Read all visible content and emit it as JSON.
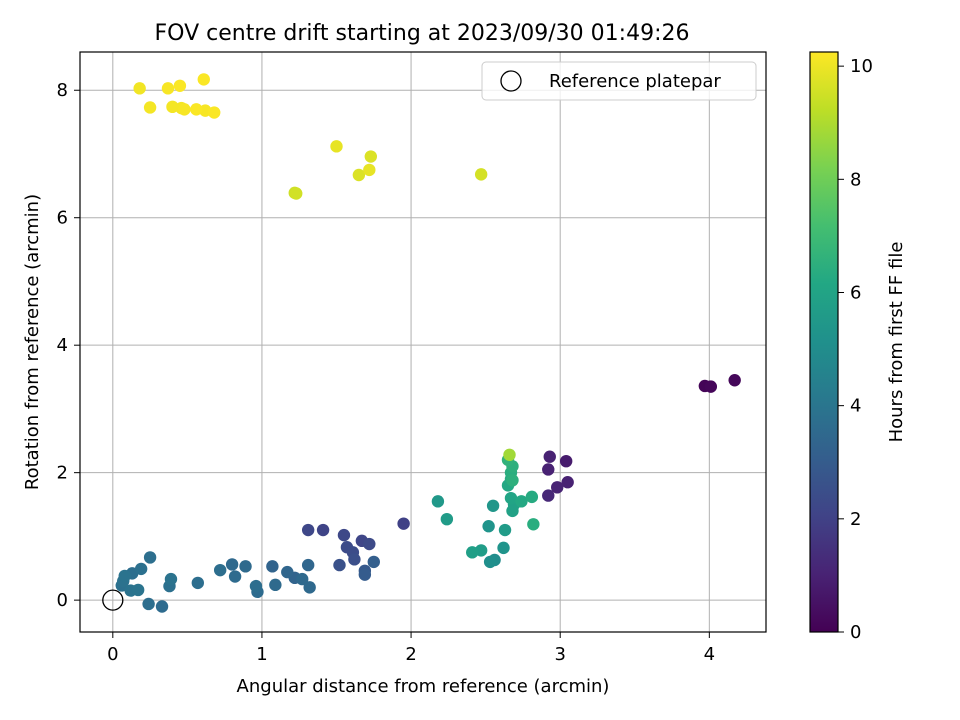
{
  "chart_data": {
    "type": "scatter",
    "title": "FOV centre drift starting at 2023/09/30 01:49:26",
    "xlabel": "Angular distance from reference (arcmin)",
    "ylabel": "Rotation from reference (arcmin)",
    "xlim": [
      -0.22,
      4.38
    ],
    "ylim": [
      -0.5,
      8.6
    ],
    "xticks": [
      0,
      1,
      2,
      3,
      4
    ],
    "yticks": [
      0,
      2,
      4,
      6,
      8
    ],
    "grid": true,
    "legend": {
      "position": "top-right",
      "entries": [
        "Reference platepar"
      ]
    },
    "reference_point": {
      "label": "Reference platepar",
      "x": 0,
      "y": 0
    },
    "colorbar": {
      "label": "Hours from first FF file",
      "colormap": "viridis",
      "range": [
        0,
        10.25
      ],
      "ticks": [
        0,
        2,
        4,
        6,
        8,
        10
      ]
    },
    "series": [
      {
        "x": [
          3.97,
          4.01,
          4.17,
          2.93,
          3.04,
          2.92,
          2.98,
          3.05,
          2.92,
          1.95,
          1.31,
          1.41,
          1.55,
          1.67,
          1.72,
          1.57,
          1.61,
          1.62,
          1.52,
          1.69,
          1.69,
          1.75,
          1.07,
          1.17,
          1.22,
          1.27,
          1.32,
          1.31,
          1.09,
          0.97,
          0.96,
          0.8,
          0.82,
          0.89,
          0.72,
          0.57,
          0.38,
          0.39,
          0.33,
          0.24,
          0.19,
          0.25,
          0.13,
          0.08,
          0.06,
          0.12,
          0.17,
          0.07,
          2.18,
          2.24,
          2.41,
          2.47,
          2.52,
          2.53,
          2.56,
          2.55,
          2.62,
          2.63,
          2.68,
          2.67,
          2.69,
          2.74,
          2.81,
          2.82,
          2.65,
          2.67,
          2.68,
          2.67,
          2.68,
          2.65,
          2.66,
          2.47,
          1.5,
          1.65,
          1.72,
          1.73,
          1.22,
          1.23,
          0.18,
          0.25,
          0.37,
          0.4,
          0.45,
          0.46,
          0.48,
          0.56,
          0.61,
          0.62,
          0.68
        ],
        "y": [
          3.36,
          3.35,
          3.45,
          2.25,
          2.18,
          2.05,
          1.77,
          1.85,
          1.64,
          1.2,
          1.1,
          1.1,
          1.02,
          0.93,
          0.88,
          0.83,
          0.75,
          0.64,
          0.55,
          0.4,
          0.46,
          0.6,
          0.53,
          0.44,
          0.35,
          0.33,
          0.2,
          0.55,
          0.24,
          0.13,
          0.22,
          0.56,
          0.37,
          0.53,
          0.47,
          0.27,
          0.22,
          0.33,
          -0.1,
          -0.06,
          0.49,
          0.67,
          0.42,
          0.38,
          0.23,
          0.15,
          0.16,
          0.3,
          1.55,
          1.27,
          0.75,
          0.78,
          1.16,
          0.6,
          0.63,
          1.48,
          0.82,
          1.1,
          1.4,
          1.6,
          1.5,
          1.55,
          1.62,
          1.19,
          1.8,
          1.9,
          1.88,
          2.0,
          2.1,
          2.2,
          2.28,
          6.68,
          7.12,
          6.67,
          6.75,
          6.96,
          6.39,
          6.38,
          8.03,
          7.73,
          8.03,
          7.74,
          8.07,
          7.72,
          7.7,
          7.7,
          8.17,
          7.68,
          7.65
        ],
        "c": [
          0.1,
          0.15,
          0.2,
          1.0,
          0.8,
          1.0,
          1.05,
          1.0,
          1.2,
          2.0,
          2.2,
          2.1,
          2.25,
          2.15,
          2.3,
          2.35,
          2.4,
          2.5,
          2.6,
          3.0,
          2.9,
          3.1,
          3.3,
          3.4,
          3.3,
          3.5,
          3.5,
          3.4,
          3.55,
          3.6,
          3.7,
          3.5,
          3.6,
          3.55,
          3.7,
          3.7,
          3.8,
          3.9,
          3.6,
          3.7,
          3.8,
          3.75,
          3.7,
          3.9,
          3.8,
          3.9,
          3.95,
          3.85,
          5.5,
          5.6,
          5.8,
          5.7,
          5.3,
          5.1,
          5.0,
          5.4,
          5.3,
          5.6,
          5.9,
          6.0,
          5.9,
          6.2,
          6.3,
          6.4,
          6.2,
          6.3,
          6.5,
          6.4,
          6.5,
          6.6,
          8.8,
          9.6,
          9.9,
          9.7,
          9.9,
          9.7,
          9.5,
          9.55,
          10.05,
          10.1,
          10.15,
          10.1,
          10.2,
          10.1,
          10.15,
          10.2,
          10.2,
          10.15,
          10.2
        ]
      }
    ]
  }
}
